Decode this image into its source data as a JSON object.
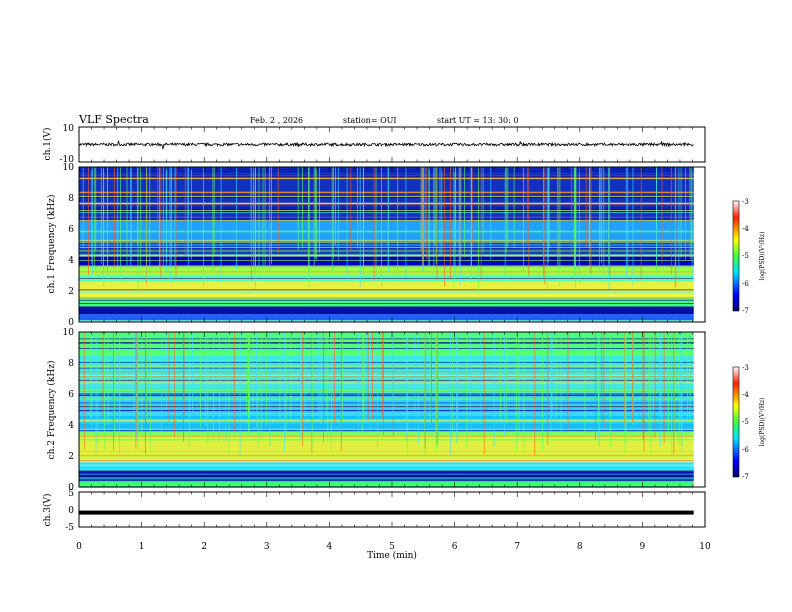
{
  "header": {
    "title": "VLF Spectra",
    "date": "Feb. 2 , 2026",
    "station": "station= OUI",
    "start": "start UT = 13: 30: 0"
  },
  "chart_data": [
    {
      "type": "line",
      "name": "ch1-waveform",
      "ylabel": "ch.1(V)",
      "ylim": [
        -10,
        10
      ],
      "yticks": [
        "10",
        "-10"
      ],
      "baseline": 0,
      "xlim": [
        0,
        10
      ]
    },
    {
      "type": "heatmap",
      "name": "ch1-spectrogram",
      "ylabel": "ch.1 Frequency (kHz)",
      "ylim": [
        0,
        10
      ],
      "yticks": [
        "0",
        "2",
        "4",
        "6",
        "8",
        "10"
      ],
      "xlim": [
        0,
        9.82
      ],
      "colorbar": {
        "label": "log(PSD)(V²/Hz)",
        "range": [
          -7,
          -3
        ],
        "ticks": [
          "-3",
          "-4",
          "-5",
          "-6",
          "-7"
        ]
      }
    },
    {
      "type": "heatmap",
      "name": "ch2-spectrogram",
      "ylabel": "ch.2 Frequency (kHz)",
      "ylim": [
        0,
        10
      ],
      "yticks": [
        "0",
        "2",
        "4",
        "6",
        "8",
        "10"
      ],
      "xlim": [
        0,
        9.82
      ],
      "colorbar": {
        "label": "log(PSD)(V²/Hz)",
        "range": [
          -7,
          -3
        ],
        "ticks": [
          "-3",
          "-4",
          "-5",
          "-6",
          "-7"
        ]
      }
    },
    {
      "type": "line",
      "name": "ch3-waveform",
      "ylabel": "ch.3(V)",
      "ylim": [
        -5,
        5
      ],
      "yticks": [
        "5",
        "0",
        "-5"
      ],
      "baseline": -0.9,
      "xlim": [
        0,
        9.82
      ]
    }
  ],
  "xaxis": {
    "label": "Time (min)",
    "range": [
      0,
      10
    ],
    "ticks": [
      "0",
      "1",
      "2",
      "3",
      "4",
      "5",
      "6",
      "7",
      "8",
      "9",
      "10"
    ]
  }
}
